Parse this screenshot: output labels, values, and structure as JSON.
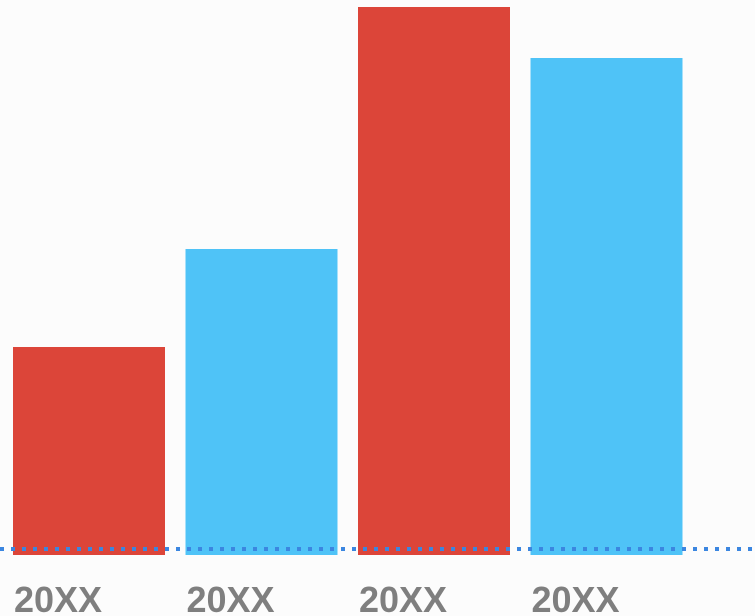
{
  "chart_data": {
    "type": "bar",
    "categories": [
      "20XX",
      "20XX",
      "20XX",
      "20XX"
    ],
    "values": [
      208,
      306,
      548,
      497
    ],
    "bar_colors": [
      "#dc4539",
      "#4fc3f7",
      "#dc4539",
      "#4fc3f7"
    ],
    "baseline_color": "#3b86e0",
    "ylim": [
      0,
      548
    ],
    "title": "",
    "xlabel": "",
    "ylabel": "",
    "grid": false,
    "legend": "none"
  }
}
